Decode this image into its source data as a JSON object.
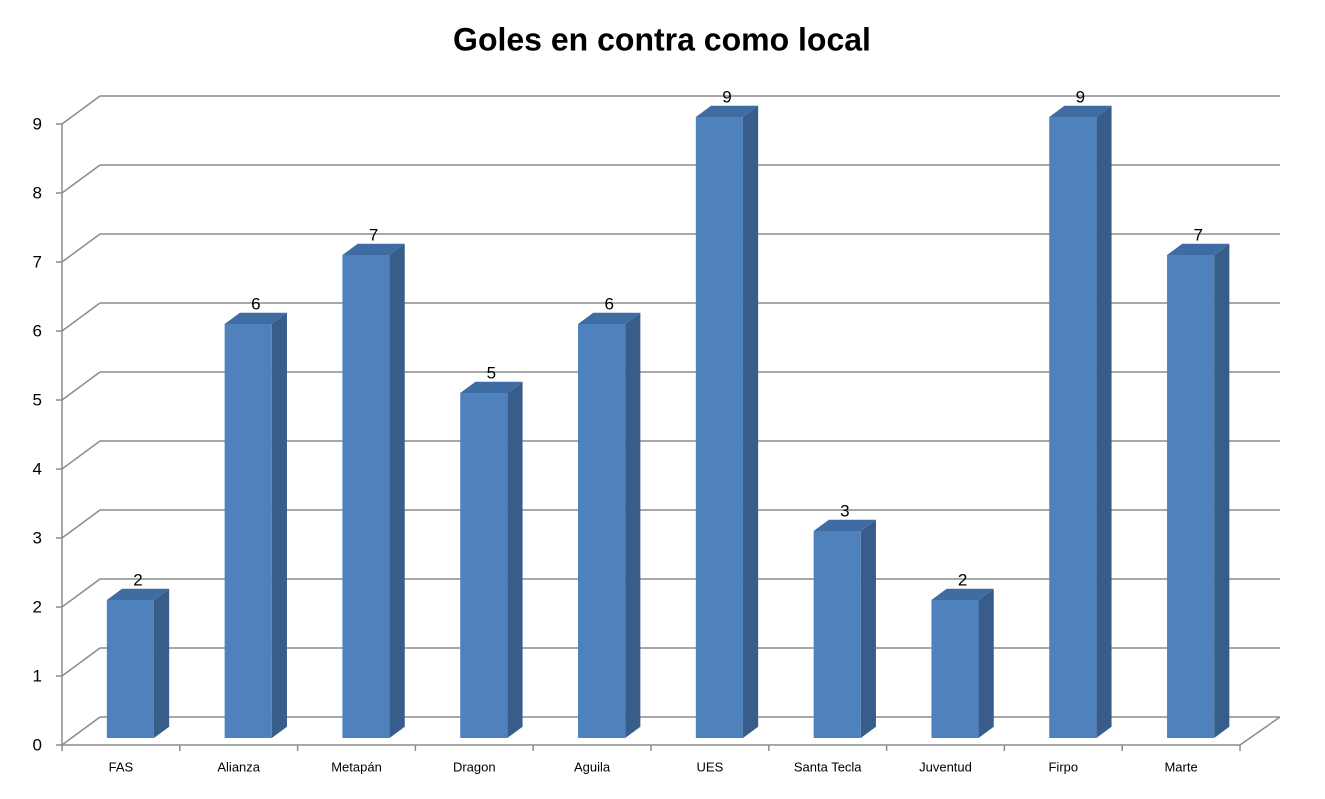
{
  "chart_data": {
    "type": "bar3d",
    "title": "Goles en contra como local",
    "categories": [
      "FAS",
      "Alianza",
      "Metapán",
      "Dragon",
      "Aguila",
      "UES",
      "Santa Tecla",
      "Juventud",
      "Firpo",
      "Marte"
    ],
    "values": [
      2,
      6,
      7,
      5,
      6,
      9,
      3,
      2,
      9,
      7
    ],
    "color": "#4f81bd",
    "ylim": [
      0,
      9
    ],
    "yticks": [
      0,
      1,
      2,
      3,
      4,
      5,
      6,
      7,
      8,
      9
    ],
    "grid": true
  }
}
